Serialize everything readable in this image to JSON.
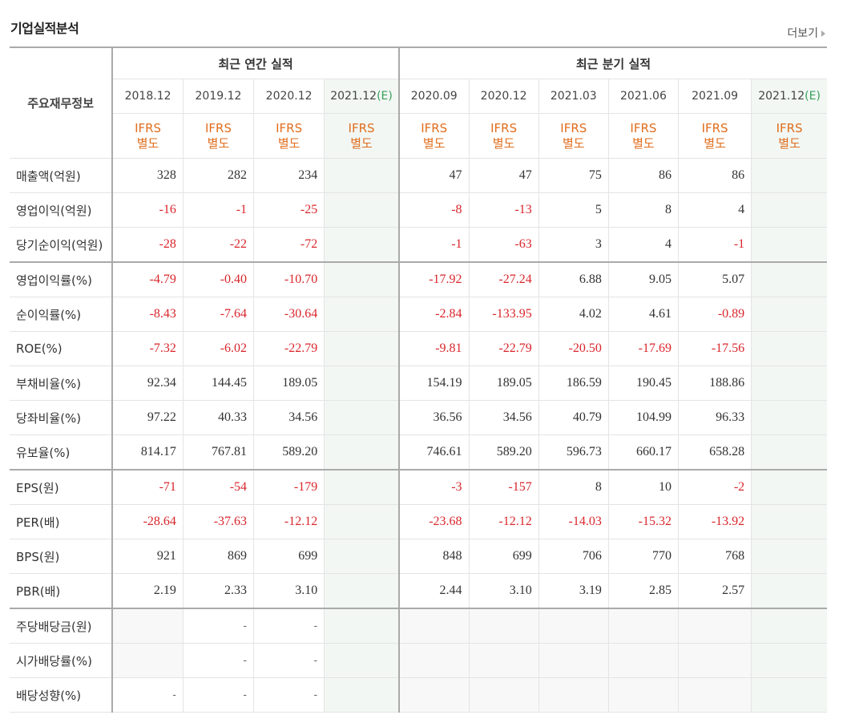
{
  "section_title": "기업실적분석",
  "more_label": "더보기",
  "header": {
    "main_label": "주요재무정보",
    "annual_label": "최근 연간 실적",
    "quarter_label": "최근 분기 실적",
    "annual_periods": [
      {
        "date": "2018.12",
        "est": ""
      },
      {
        "date": "2019.12",
        "est": ""
      },
      {
        "date": "2020.12",
        "est": ""
      },
      {
        "date": "2021.12",
        "est": "(E)"
      }
    ],
    "quarter_periods": [
      {
        "date": "2020.09",
        "est": ""
      },
      {
        "date": "2020.12",
        "est": ""
      },
      {
        "date": "2021.03",
        "est": ""
      },
      {
        "date": "2021.06",
        "est": ""
      },
      {
        "date": "2021.09",
        "est": ""
      },
      {
        "date": "2021.12",
        "est": "(E)"
      }
    ],
    "ifrs_top": "IFRS",
    "ifrs_bottom": "별도"
  },
  "rows": [
    {
      "label": "매출액(억원)",
      "values": [
        "328",
        "282",
        "234",
        "",
        "47",
        "47",
        "75",
        "86",
        "86",
        ""
      ]
    },
    {
      "label": "영업이익(억원)",
      "values": [
        "-16",
        "-1",
        "-25",
        "",
        "-8",
        "-13",
        "5",
        "8",
        "4",
        ""
      ]
    },
    {
      "label": "당기순이익(억원)",
      "values": [
        "-28",
        "-22",
        "-72",
        "",
        "-1",
        "-63",
        "3",
        "4",
        "-1",
        ""
      ]
    },
    {
      "label": "영업이익률(%)",
      "values": [
        "-4.79",
        "-0.40",
        "-10.70",
        "",
        "-17.92",
        "-27.24",
        "6.88",
        "9.05",
        "5.07",
        ""
      ]
    },
    {
      "label": "순이익률(%)",
      "values": [
        "-8.43",
        "-7.64",
        "-30.64",
        "",
        "-2.84",
        "-133.95",
        "4.02",
        "4.61",
        "-0.89",
        ""
      ]
    },
    {
      "label": "ROE(%)",
      "values": [
        "-7.32",
        "-6.02",
        "-22.79",
        "",
        "-9.81",
        "-22.79",
        "-20.50",
        "-17.69",
        "-17.56",
        ""
      ]
    },
    {
      "label": "부채비율(%)",
      "values": [
        "92.34",
        "144.45",
        "189.05",
        "",
        "154.19",
        "189.05",
        "186.59",
        "190.45",
        "188.86",
        ""
      ]
    },
    {
      "label": "당좌비율(%)",
      "values": [
        "97.22",
        "40.33",
        "34.56",
        "",
        "36.56",
        "34.56",
        "40.79",
        "104.99",
        "96.33",
        ""
      ]
    },
    {
      "label": "유보율(%)",
      "values": [
        "814.17",
        "767.81",
        "589.20",
        "",
        "746.61",
        "589.20",
        "596.73",
        "660.17",
        "658.28",
        ""
      ]
    },
    {
      "label": "EPS(원)",
      "values": [
        "-71",
        "-54",
        "-179",
        "",
        "-3",
        "-157",
        "8",
        "10",
        "-2",
        ""
      ]
    },
    {
      "label": "PER(배)",
      "values": [
        "-28.64",
        "-37.63",
        "-12.12",
        "",
        "-23.68",
        "-12.12",
        "-14.03",
        "-15.32",
        "-13.92",
        ""
      ]
    },
    {
      "label": "BPS(원)",
      "values": [
        "921",
        "869",
        "699",
        "",
        "848",
        "699",
        "706",
        "770",
        "768",
        ""
      ]
    },
    {
      "label": "PBR(배)",
      "values": [
        "2.19",
        "2.33",
        "3.10",
        "",
        "2.44",
        "3.10",
        "3.19",
        "2.85",
        "2.57",
        ""
      ]
    },
    {
      "label": "주당배당금(원)",
      "values": [
        "",
        "-",
        "-",
        "",
        "",
        "",
        "",
        "",
        "",
        ""
      ]
    },
    {
      "label": "시가배당률(%)",
      "values": [
        "",
        "-",
        "-",
        "",
        "",
        "",
        "",
        "",
        "",
        ""
      ]
    },
    {
      "label": "배당성향(%)",
      "values": [
        "-",
        "-",
        "-",
        "",
        "",
        "",
        "",
        "",
        "",
        ""
      ]
    }
  ],
  "group_starts": [
    3,
    9,
    13
  ]
}
